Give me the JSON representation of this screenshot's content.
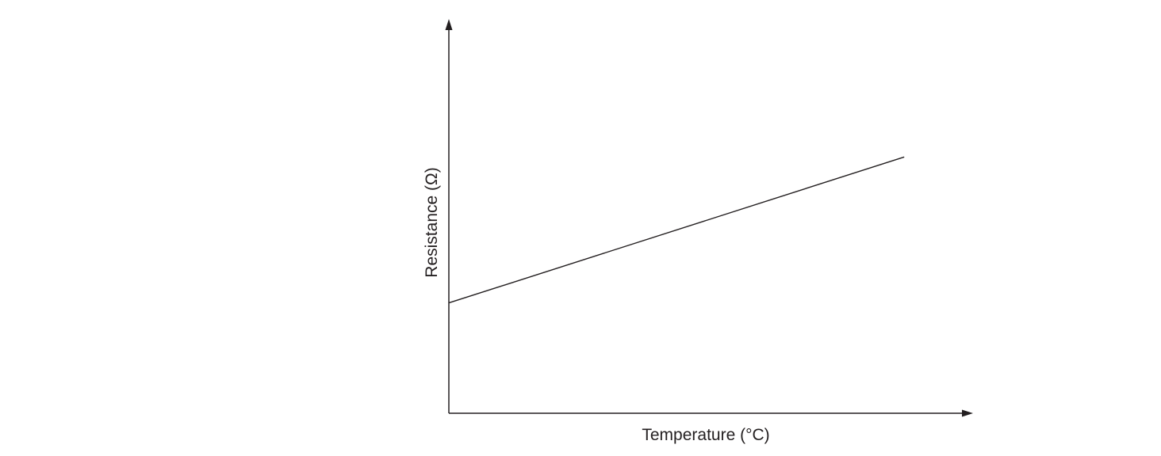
{
  "chart_data": {
    "type": "line",
    "title": "",
    "xlabel": "Temperature (°C)",
    "ylabel": "Resistance (Ω)",
    "xlim": [
      0,
      100
    ],
    "ylim": [
      0,
      100
    ],
    "grid": false,
    "legend": "none",
    "series": [
      {
        "x": [
          0,
          87
        ],
        "y": [
          28,
          65
        ],
        "color": "#231f20"
      }
    ]
  }
}
